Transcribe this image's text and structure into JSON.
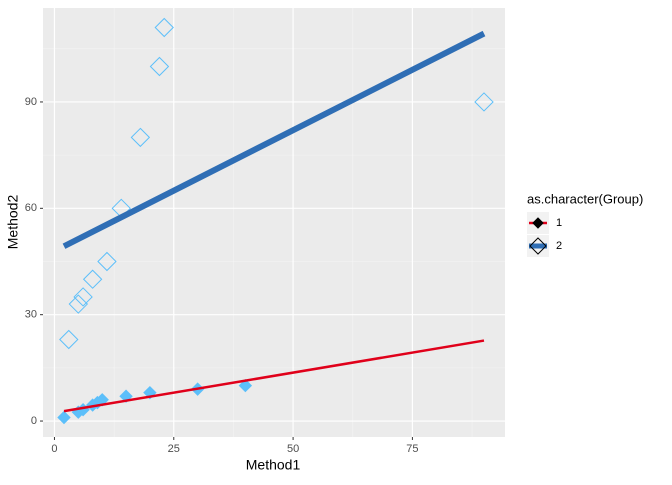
{
  "chart_data": {
    "type": "scatter",
    "x_label": "Method1",
    "y_label": "Method2",
    "xlim": [
      -2.4,
      94.4
    ],
    "ylim": [
      -4.5,
      116.5
    ],
    "xticks": [
      0,
      25,
      50,
      75
    ],
    "yticks": [
      0,
      30,
      60,
      90
    ],
    "grid": true,
    "legend_position": "right",
    "legend_title": "as.character(Group)",
    "series": [
      {
        "name": "1",
        "color": "#5CBFFA",
        "line_color": "#E0001A",
        "filled": true,
        "x": [
          2,
          5,
          6,
          8,
          9,
          10,
          15,
          20,
          30,
          40
        ],
        "values": [
          1,
          2.5,
          3.2,
          4.5,
          5.2,
          6,
          7,
          8,
          9,
          10
        ],
        "fit": {
          "x": [
            2,
            90
          ],
          "values": [
            2.8,
            22.7
          ]
        }
      },
      {
        "name": "2",
        "color": "#5CBFFA",
        "line_color": "#2F6EB5",
        "filled": false,
        "x": [
          3,
          5,
          6,
          8,
          11,
          14,
          18,
          22,
          23,
          90
        ],
        "values": [
          23,
          33,
          35,
          40,
          45,
          60,
          80,
          100,
          111,
          90
        ],
        "fit": {
          "x": [
            2,
            90
          ],
          "values": [
            49.3,
            109.3
          ]
        }
      }
    ]
  }
}
